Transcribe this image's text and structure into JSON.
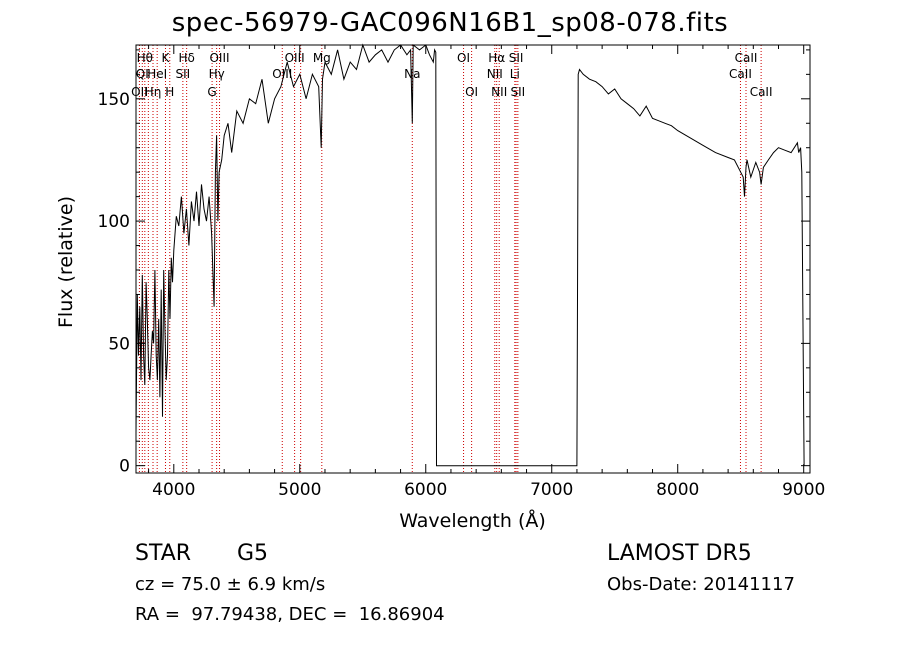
{
  "chart_data": {
    "type": "line",
    "title": "spec-56979-GAC096N16B1_sp08-078.fits",
    "xlabel": "Wavelength (Å)",
    "ylabel": "Flux (relative)",
    "xlim": [
      3700,
      9050
    ],
    "ylim": [
      -3,
      172
    ],
    "xticks": [
      4000,
      5000,
      6000,
      7000,
      8000,
      9000
    ],
    "yticks": [
      0,
      50,
      100,
      150
    ],
    "grid": false,
    "line_color": "#000000",
    "marker_color": "#cc0000",
    "series": [
      {
        "x": [
          3700,
          3710,
          3720,
          3730,
          3740,
          3750,
          3760,
          3770,
          3780,
          3790,
          3800,
          3810,
          3820,
          3830,
          3840,
          3850,
          3860,
          3870,
          3880,
          3890,
          3900,
          3910,
          3920,
          3930,
          3940,
          3950,
          3960,
          3970,
          3980,
          3990,
          4000,
          4020,
          4040,
          4060,
          4080,
          4100,
          4120,
          4140,
          4160,
          4180,
          4200,
          4220,
          4240,
          4260,
          4280,
          4300,
          4320,
          4330,
          4340,
          4350,
          4360,
          4380,
          4400,
          4430,
          4460,
          4500,
          4550,
          4600,
          4650,
          4700,
          4750,
          4800,
          4850,
          4900,
          4950,
          5000,
          5050,
          5100,
          5150,
          5170,
          5180,
          5200,
          5250,
          5300,
          5350,
          5400,
          5450,
          5500,
          5550,
          5600,
          5650,
          5700,
          5750,
          5800,
          5850,
          5880,
          5893,
          5900,
          5950,
          6000,
          6030,
          6060,
          6070,
          6080,
          6085,
          6100,
          6300,
          6500,
          6700,
          6900,
          7100,
          7200,
          7205,
          7210,
          7220,
          7250,
          7300,
          7350,
          7400,
          7450,
          7500,
          7550,
          7600,
          7650,
          7700,
          7750,
          7800,
          7850,
          7900,
          7950,
          8000,
          8100,
          8200,
          8300,
          8400,
          8450,
          8500,
          8520,
          8530,
          8542,
          8550,
          8580,
          8620,
          8650,
          8662,
          8680,
          8720,
          8760,
          8800,
          8850,
          8900,
          8950,
          8960,
          8975,
          8985,
          9000,
          9003
        ],
        "y": [
          13,
          70,
          45,
          65,
          35,
          78,
          45,
          33,
          75,
          60,
          40,
          35,
          45,
          55,
          50,
          80,
          45,
          35,
          60,
          28,
          72,
          20,
          80,
          55,
          35,
          45,
          80,
          60,
          85,
          75,
          88,
          102,
          98,
          110,
          95,
          105,
          90,
          108,
          100,
          112,
          98,
          115,
          105,
          100,
          110,
          95,
          65,
          120,
          135,
          100,
          120,
          125,
          135,
          140,
          128,
          145,
          140,
          150,
          148,
          158,
          140,
          150,
          155,
          165,
          155,
          160,
          150,
          160,
          155,
          130,
          158,
          165,
          160,
          170,
          158,
          165,
          162,
          172,
          165,
          168,
          170,
          165,
          170,
          172,
          168,
          170,
          140,
          172,
          170,
          172,
          168,
          165,
          170,
          169,
          0,
          0,
          0,
          0,
          0,
          0,
          0,
          0,
          80,
          160,
          162,
          160,
          158,
          157,
          155,
          152,
          154,
          150,
          148,
          146,
          143,
          147,
          142,
          141,
          140,
          139,
          137,
          134,
          131,
          128,
          126,
          125,
          120,
          118,
          110,
          122,
          125,
          118,
          124,
          120,
          115,
          122,
          125,
          128,
          130,
          129,
          128,
          132,
          128,
          130,
          120,
          20,
          0
        ]
      }
    ],
    "lines": [
      {
        "x": 3727,
        "labels": [
          "OII"
        ]
      },
      {
        "x": 3750,
        "labels": [
          "QI"
        ]
      },
      {
        "x": 3770,
        "labels": [
          "Hθ"
        ]
      },
      {
        "x": 3798,
        "labels": [
          "HΗ"
        ]
      },
      {
        "x": 3835,
        "labels": [
          "Hη"
        ]
      },
      {
        "x": 3868,
        "labels": [
          "HeI"
        ]
      },
      {
        "x": 3934,
        "labels": [
          "K"
        ]
      },
      {
        "x": 3968,
        "labels": [
          "H"
        ]
      },
      {
        "x": 4102,
        "labels": [
          "Hδ"
        ]
      },
      {
        "x": 4072,
        "labels": [
          "SII"
        ]
      },
      {
        "x": 4304,
        "labels": [
          "G"
        ]
      },
      {
        "x": 4340,
        "labels": [
          "Hγ"
        ]
      },
      {
        "x": 4363,
        "labels": [
          "OIII"
        ]
      },
      {
        "x": 4861,
        "labels": [
          "OIII"
        ]
      },
      {
        "x": 4959,
        "labels": [
          "OIII"
        ]
      },
      {
        "x": 5007,
        "labels": [
          "OIII"
        ]
      },
      {
        "x": 5175,
        "labels": [
          "Mg"
        ]
      },
      {
        "x": 5893,
        "labels": [
          "Na"
        ]
      },
      {
        "x": 6300,
        "labels": [
          "OI"
        ]
      },
      {
        "x": 6364,
        "labels": [
          "OI"
        ]
      },
      {
        "x": 6548,
        "labels": [
          "NII"
        ]
      },
      {
        "x": 6563,
        "labels": [
          "Hα"
        ]
      },
      {
        "x": 6583,
        "labels": [
          "NII"
        ]
      },
      {
        "x": 6707,
        "labels": [
          "Li"
        ]
      },
      {
        "x": 6717,
        "labels": [
          "SII"
        ]
      },
      {
        "x": 6731,
        "labels": [
          "SII"
        ]
      },
      {
        "x": 8498,
        "labels": [
          "CaII"
        ]
      },
      {
        "x": 8542,
        "labels": [
          "CaII"
        ]
      },
      {
        "x": 8662,
        "labels": [
          "CaII"
        ]
      }
    ],
    "line_labels": [
      {
        "text": "Hθ",
        "x": 3770,
        "row": 1
      },
      {
        "text": "K",
        "x": 3934,
        "row": 1
      },
      {
        "text": "Hδ",
        "x": 4102,
        "row": 1
      },
      {
        "text": "OIII",
        "x": 4363,
        "row": 1
      },
      {
        "text": "OIII",
        "x": 4959,
        "row": 1
      },
      {
        "text": "Mg",
        "x": 5175,
        "row": 1
      },
      {
        "text": "OI",
        "x": 6300,
        "row": 1
      },
      {
        "text": "Hα",
        "x": 6563,
        "row": 1
      },
      {
        "text": "SII",
        "x": 6717,
        "row": 1
      },
      {
        "text": "CaII",
        "x": 8542,
        "row": 1
      },
      {
        "text": "QI",
        "x": 3750,
        "row": 2
      },
      {
        "text": "HeI",
        "x": 3868,
        "row": 2
      },
      {
        "text": "SII",
        "x": 4072,
        "row": 2
      },
      {
        "text": "Hγ",
        "x": 4340,
        "row": 2
      },
      {
        "text": "OIII",
        "x": 4861,
        "row": 2
      },
      {
        "text": "Na",
        "x": 5893,
        "row": 2
      },
      {
        "text": "NII",
        "x": 6548,
        "row": 2
      },
      {
        "text": "Li",
        "x": 6707,
        "row": 2
      },
      {
        "text": "CaII",
        "x": 8498,
        "row": 2
      },
      {
        "text": "OII",
        "x": 3727,
        "row": 3
      },
      {
        "text": "Hη",
        "x": 3835,
        "row": 3
      },
      {
        "text": "H",
        "x": 3968,
        "row": 3
      },
      {
        "text": "G",
        "x": 4304,
        "row": 3
      },
      {
        "text": "OI",
        "x": 6364,
        "row": 3
      },
      {
        "text": "NII",
        "x": 6583,
        "row": 3
      },
      {
        "text": "SII",
        "x": 6731,
        "row": 3
      },
      {
        "text": "CaII",
        "x": 8662,
        "row": 3
      }
    ]
  },
  "info": {
    "object_class": "STAR",
    "subclass": "G5",
    "survey": "LAMOST DR5",
    "redshift_line": "cz = 75.0 ± 6.9 km/s",
    "obs_date": "Obs-Date: 20141117",
    "coords": "RA =  97.79438, DEC =  16.86904"
  }
}
